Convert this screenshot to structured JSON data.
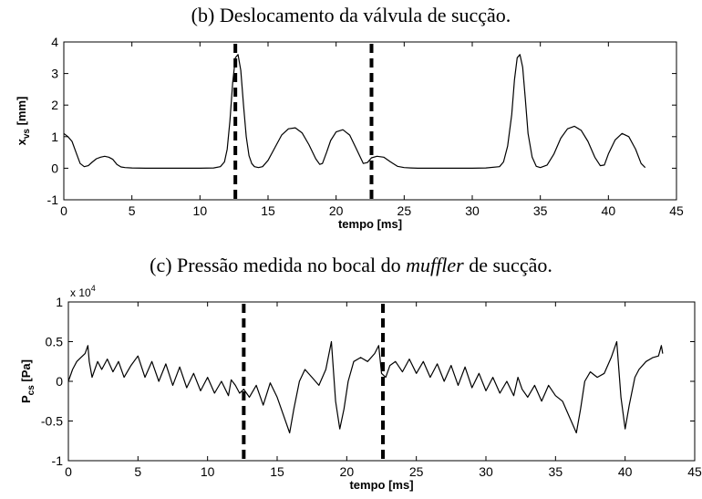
{
  "captions": {
    "b": "(b) Deslocamento da válvula de sucção.",
    "c_before": "(c) Pressão medida no bocal do ",
    "c_italic": "muffler",
    "c_after": " de sucção."
  },
  "chart_data": [
    {
      "id": "b",
      "type": "line",
      "title": "(b) Deslocamento da válvula de sucção.",
      "xlabel": "tempo [ms]",
      "ylabel": "x_vs [mm]",
      "ylabel_main": "x",
      "ylabel_sub": "vs",
      "ylabel_unit": " [mm]",
      "xlim": [
        0,
        45
      ],
      "ylim": [
        -1,
        4
      ],
      "xticks": [
        0,
        5,
        10,
        15,
        20,
        25,
        30,
        35,
        40,
        45
      ],
      "yticks": [
        -1,
        0,
        1,
        2,
        3,
        4
      ],
      "grid": false,
      "line_color": "#000000",
      "marker_lines_x": [
        12.6,
        22.6
      ],
      "marker_lines_style": "dashed",
      "series": [
        {
          "x": [
            0,
            0.3,
            0.6,
            0.9,
            1.2,
            1.5,
            1.8,
            2.1,
            2.4,
            2.7,
            3.0,
            3.3,
            3.6,
            3.9,
            4.2,
            4.5,
            5.0,
            6,
            7,
            8,
            9,
            10,
            11,
            11.5,
            11.8,
            12.0,
            12.2,
            12.4,
            12.6,
            12.8,
            13.0,
            13.2,
            13.4,
            13.6,
            13.8,
            14.0,
            14.3,
            14.6,
            15.0,
            15.5,
            16.0,
            16.5,
            17.0,
            17.5,
            18.0,
            18.5,
            18.8,
            19.0,
            19.3,
            19.6,
            20.0,
            20.5,
            21.0,
            21.5,
            22.0,
            22.3,
            22.6,
            23.0,
            23.5,
            24.0,
            24.5,
            25.0,
            25.5,
            26,
            28,
            30,
            31,
            32,
            32.3,
            32.6,
            32.9,
            33.1,
            33.3,
            33.5,
            33.7,
            33.9,
            34.1,
            34.4,
            34.7,
            35.0,
            35.5,
            36.0,
            36.5,
            37.0,
            37.5,
            38.0,
            38.5,
            39.0,
            39.4,
            39.7,
            40.0,
            40.5,
            41.0,
            41.5,
            42.0,
            42.4,
            42.7
          ],
          "y": [
            1.1,
            1.0,
            0.85,
            0.5,
            0.15,
            0.05,
            0.08,
            0.2,
            0.3,
            0.35,
            0.38,
            0.35,
            0.28,
            0.12,
            0.04,
            0.02,
            0.01,
            0.0,
            0.0,
            0.0,
            0.0,
            0.0,
            0.01,
            0.05,
            0.2,
            0.6,
            1.5,
            2.7,
            3.5,
            3.6,
            3.1,
            2.0,
            1.0,
            0.4,
            0.15,
            0.05,
            0.02,
            0.05,
            0.25,
            0.65,
            1.05,
            1.25,
            1.28,
            1.12,
            0.75,
            0.3,
            0.12,
            0.15,
            0.5,
            0.88,
            1.15,
            1.22,
            1.05,
            0.6,
            0.15,
            0.18,
            0.33,
            0.38,
            0.35,
            0.2,
            0.06,
            0.02,
            0.01,
            0.0,
            0.0,
            0.0,
            0.01,
            0.05,
            0.2,
            0.7,
            1.7,
            2.8,
            3.5,
            3.6,
            3.2,
            2.2,
            1.1,
            0.35,
            0.06,
            0.02,
            0.1,
            0.45,
            0.95,
            1.25,
            1.33,
            1.2,
            0.85,
            0.35,
            0.08,
            0.1,
            0.45,
            0.9,
            1.1,
            1.0,
            0.6,
            0.15,
            0.02
          ]
        }
      ]
    },
    {
      "id": "c",
      "type": "line",
      "title": "(c) Pressão medida no bocal do muffler de sucção.",
      "xlabel": "tempo [ms]",
      "ylabel": "P_cs [Pa]",
      "ylabel_main": "P",
      "ylabel_sub": "cs",
      "ylabel_unit": " [Pa]",
      "y_multiplier": "x 10",
      "y_multiplier_exp": "4",
      "xlim": [
        0,
        45
      ],
      "ylim": [
        -1,
        1
      ],
      "xticks": [
        0,
        5,
        10,
        15,
        20,
        25,
        30,
        35,
        40,
        45
      ],
      "yticks": [
        -1,
        -0.5,
        0,
        0.5,
        1
      ],
      "grid": false,
      "line_color": "#000000",
      "marker_lines_x": [
        12.6,
        22.6
      ],
      "marker_lines_style": "dashed",
      "series": [
        {
          "x": [
            0,
            0.3,
            0.6,
            0.9,
            1.2,
            1.4,
            1.5,
            1.7,
            1.9,
            2.1,
            2.4,
            2.8,
            3.2,
            3.6,
            4.0,
            4.5,
            5.0,
            5.5,
            6.0,
            6.5,
            7.0,
            7.5,
            8.0,
            8.5,
            9.0,
            9.5,
            10.0,
            10.5,
            11.0,
            11.5,
            11.7,
            12.0,
            12.3,
            12.6,
            13.0,
            13.5,
            14.0,
            14.5,
            15.0,
            15.5,
            15.9,
            16.2,
            16.6,
            17.0,
            17.5,
            18.0,
            18.5,
            18.9,
            19.2,
            19.5,
            19.8,
            20.1,
            20.5,
            21.0,
            21.5,
            22.0,
            22.3,
            22.5,
            22.8,
            23.1,
            23.5,
            24.0,
            24.5,
            25.0,
            25.5,
            26.0,
            26.5,
            27.0,
            27.5,
            28.0,
            28.5,
            29.0,
            29.5,
            30.0,
            30.5,
            31.0,
            31.5,
            32.0,
            32.3,
            32.6,
            33.0,
            33.5,
            34.0,
            34.5,
            35.0,
            35.5,
            36.0,
            36.5,
            36.8,
            37.1,
            37.5,
            38.0,
            38.5,
            39.0,
            39.4,
            39.7,
            40.0,
            40.3,
            40.7,
            41.0,
            41.5,
            42.0,
            42.4,
            42.6,
            42.7
          ],
          "y": [
            0.0,
            0.15,
            0.25,
            0.3,
            0.35,
            0.45,
            0.25,
            0.05,
            0.15,
            0.25,
            0.15,
            0.28,
            0.12,
            0.25,
            0.05,
            0.2,
            0.32,
            0.05,
            0.25,
            0.0,
            0.22,
            -0.05,
            0.18,
            -0.08,
            0.1,
            -0.12,
            0.05,
            -0.15,
            0.0,
            -0.18,
            0.02,
            -0.05,
            -0.15,
            -0.1,
            -0.2,
            -0.05,
            -0.3,
            -0.02,
            -0.2,
            -0.45,
            -0.65,
            -0.35,
            0.0,
            0.15,
            0.05,
            -0.05,
            0.15,
            0.5,
            -0.25,
            -0.6,
            -0.35,
            0.0,
            0.25,
            0.3,
            0.25,
            0.35,
            0.45,
            0.1,
            0.05,
            0.2,
            0.25,
            0.12,
            0.28,
            0.1,
            0.25,
            0.05,
            0.22,
            0.0,
            0.2,
            -0.05,
            0.18,
            -0.08,
            0.1,
            -0.12,
            0.05,
            -0.15,
            0.0,
            -0.18,
            0.05,
            -0.1,
            -0.2,
            -0.05,
            -0.25,
            -0.05,
            -0.18,
            -0.25,
            -0.45,
            -0.65,
            -0.35,
            0.0,
            0.12,
            0.05,
            0.1,
            0.3,
            0.5,
            -0.2,
            -0.6,
            -0.3,
            0.05,
            0.15,
            0.25,
            0.3,
            0.32,
            0.45,
            0.35
          ]
        }
      ]
    }
  ]
}
